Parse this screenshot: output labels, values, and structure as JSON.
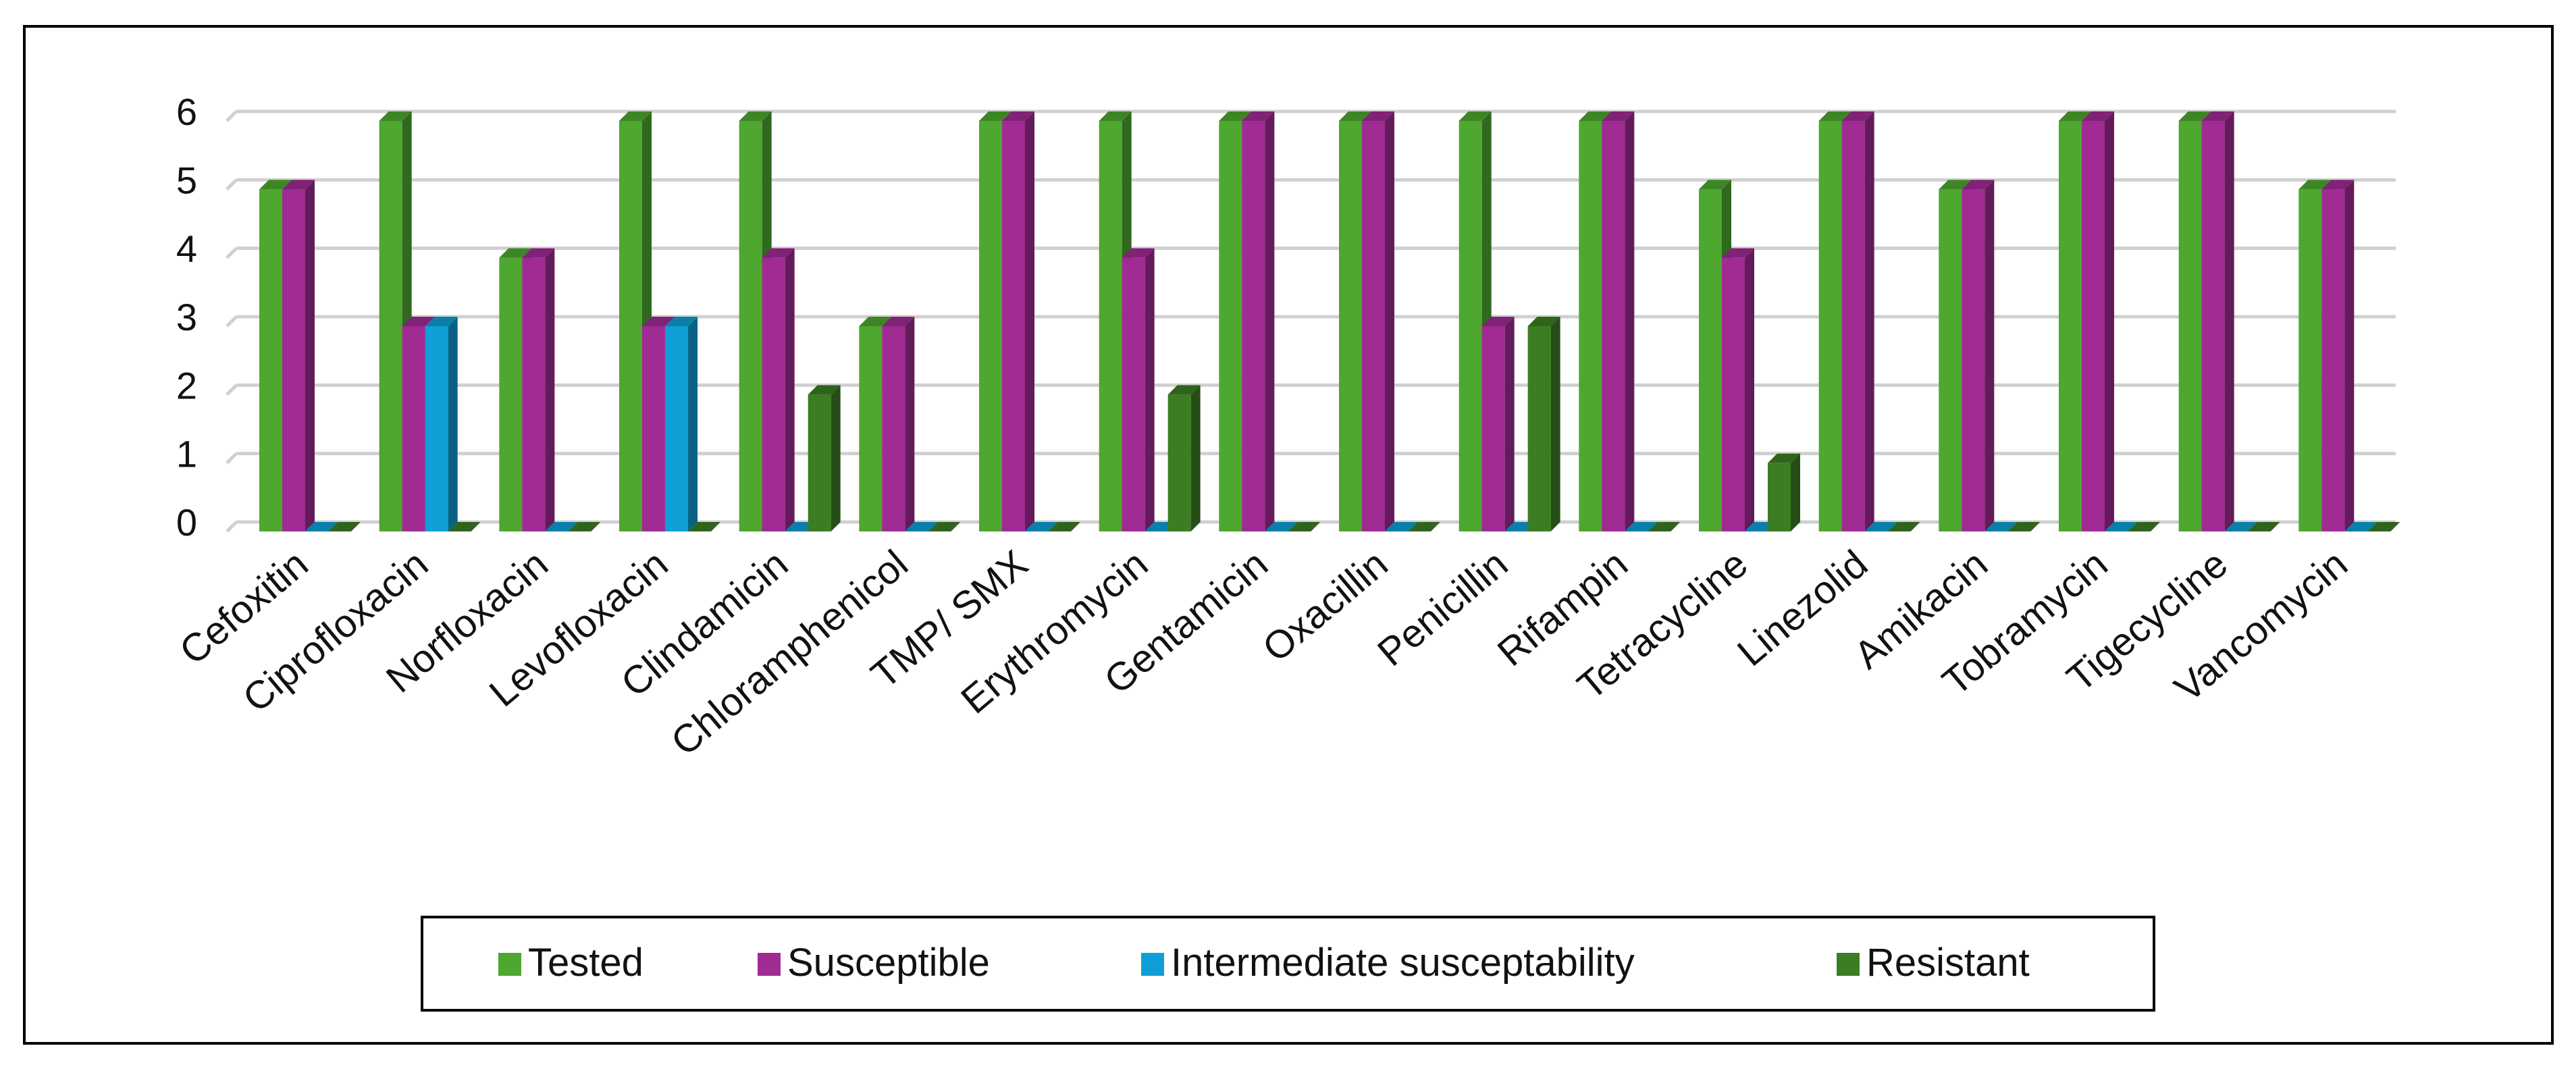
{
  "chart_data": {
    "type": "bar",
    "title": "",
    "xlabel": "",
    "ylabel": "",
    "ylim": [
      0,
      6
    ],
    "yticks": [
      0,
      1,
      2,
      3,
      4,
      5,
      6
    ],
    "grid": true,
    "legend_position": "bottom",
    "categories": [
      "Cefoxitin",
      "Ciprofloxacin",
      "Norfloxacin",
      "Levofloxacin",
      "Clindamicin",
      "Chloramphenicol",
      "TMP/ SMX",
      "Erythromycin",
      "Gentamicin",
      "Oxacillin",
      "Penicillin",
      "Rifampin",
      "Tetracycline",
      "Linezolid",
      "Amikacin",
      "Tobramycin",
      "Tigecycline",
      "Vancomycin"
    ],
    "series": [
      {
        "name": "Tested",
        "color": "#4ea72e",
        "values": [
          5,
          6,
          4,
          6,
          6,
          3,
          6,
          6,
          6,
          6,
          6,
          6,
          5,
          6,
          5,
          6,
          6,
          5
        ]
      },
      {
        "name": "Susceptible",
        "color": "#a02b93",
        "values": [
          5,
          3,
          4,
          3,
          4,
          3,
          6,
          4,
          6,
          6,
          3,
          6,
          4,
          6,
          5,
          6,
          6,
          5
        ]
      },
      {
        "name": "Intermediate susceptability",
        "color": "#0f9ed5",
        "values": [
          0,
          3,
          0,
          3,
          0,
          0,
          0,
          0,
          0,
          0,
          0,
          0,
          0,
          0,
          0,
          0,
          0,
          0
        ]
      },
      {
        "name": "Resistant",
        "color": "#3b7d23",
        "values": [
          0,
          0,
          0,
          0,
          2,
          0,
          0,
          2,
          0,
          0,
          3,
          0,
          1,
          0,
          0,
          0,
          0,
          0
        ]
      }
    ]
  }
}
